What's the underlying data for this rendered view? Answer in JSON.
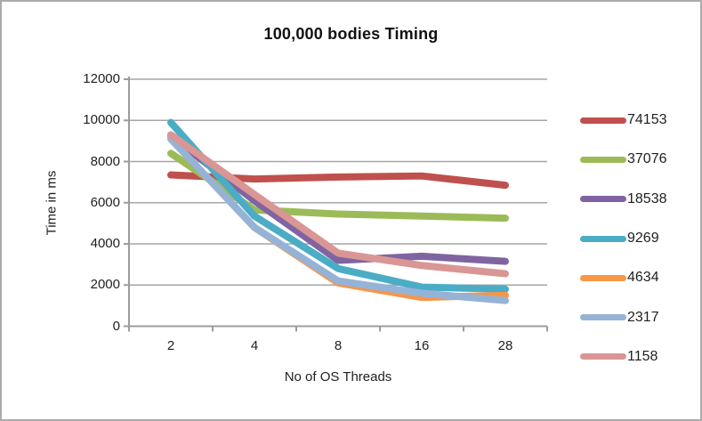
{
  "chart_data": {
    "type": "line",
    "title": "100,000 bodies Timing",
    "xlabel": "No of OS Threads",
    "ylabel": "Time in ms",
    "categories": [
      "2",
      "4",
      "8",
      "16",
      "28"
    ],
    "y_ticks": [
      0,
      2000,
      4000,
      6000,
      8000,
      10000,
      12000
    ],
    "ylim": [
      0,
      12000
    ],
    "grid": true,
    "legend_position": "right",
    "line_width": 8,
    "grid_color": "#a6a6a6",
    "axis_color": "#9c9c9c",
    "series": [
      {
        "name": "74153",
        "color": "#C0504D",
        "values": [
          7350,
          7150,
          7250,
          7300,
          6850
        ]
      },
      {
        "name": "37076",
        "color": "#9BBB59",
        "values": [
          8400,
          5650,
          5450,
          5350,
          5250
        ]
      },
      {
        "name": "18538",
        "color": "#8064A2",
        "values": [
          9250,
          6100,
          3200,
          3400,
          3150
        ]
      },
      {
        "name": "9269",
        "color": "#4BACC6",
        "values": [
          9900,
          5350,
          2800,
          1900,
          1800
        ]
      },
      {
        "name": "4634",
        "color": "#F79646",
        "values": [
          9100,
          4800,
          2100,
          1400,
          1500
        ]
      },
      {
        "name": "2317",
        "color": "#95B3D7",
        "values": [
          9100,
          4800,
          2200,
          1600,
          1250
        ]
      },
      {
        "name": "1158",
        "color": "#D99694",
        "values": [
          9300,
          6400,
          3550,
          2950,
          2550
        ]
      }
    ]
  }
}
